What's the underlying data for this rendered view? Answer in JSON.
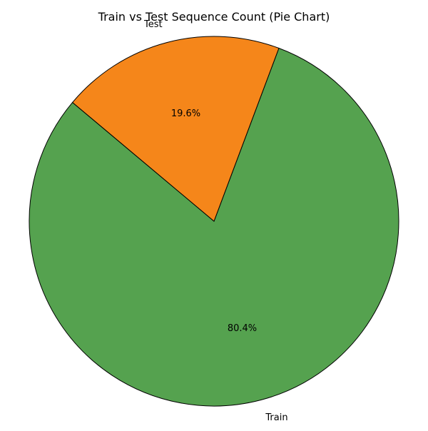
{
  "chart_data": {
    "type": "pie",
    "title": "Train vs Test Sequence Count (Pie Chart)",
    "categories": [
      "Train",
      "Test"
    ],
    "values": [
      80.4,
      19.6
    ],
    "value_labels": [
      "80.4%",
      "19.6%"
    ],
    "colors": [
      "#55a24f",
      "#f5861a"
    ],
    "edge_color": "#000000",
    "start_angle_deg": 140,
    "legend": "none"
  }
}
